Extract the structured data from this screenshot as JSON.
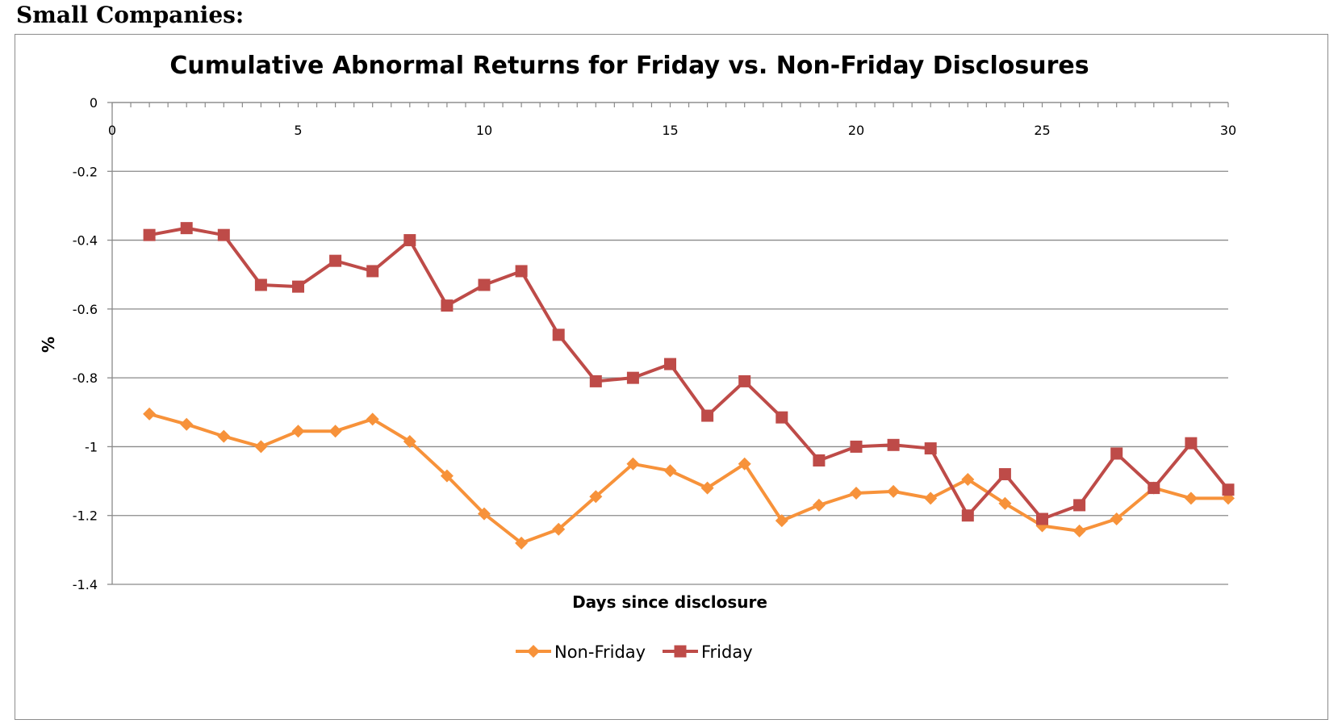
{
  "heading": "Small Companies:",
  "chart_data": {
    "type": "line",
    "title": "Cumulative Abnormal Returns for Friday vs. Non-Friday Disclosures",
    "xlabel": "Days since disclosure",
    "ylabel": "%",
    "xlim": [
      0,
      30
    ],
    "ylim": [
      -1.4,
      0
    ],
    "x_ticks": [
      0,
      5,
      10,
      15,
      20,
      25,
      30
    ],
    "y_ticks": [
      0,
      -0.2,
      -0.4,
      -0.6,
      -0.8,
      -1,
      -1.2,
      -1.4
    ],
    "y_tick_labels": [
      "0",
      "-0.2",
      "-0.4",
      "-0.6",
      "-0.8",
      "-1",
      "-1.2",
      "-1.4"
    ],
    "grid": "horizontal",
    "legend_position": "bottom",
    "x": [
      1,
      2,
      3,
      4,
      5,
      6,
      7,
      8,
      9,
      10,
      11,
      12,
      13,
      14,
      15,
      16,
      17,
      18,
      19,
      20,
      21,
      22,
      23,
      24,
      25,
      26,
      27,
      28,
      29,
      30
    ],
    "series": [
      {
        "name": "Non-Friday",
        "color": "#f7923a",
        "marker": "diamond",
        "values": [
          -0.905,
          -0.935,
          -0.97,
          -1.0,
          -0.955,
          -0.955,
          -0.92,
          -0.985,
          -1.085,
          -1.195,
          -1.28,
          -1.24,
          -1.145,
          -1.05,
          -1.07,
          -1.12,
          -1.05,
          -1.215,
          -1.17,
          -1.135,
          -1.13,
          -1.15,
          -1.095,
          -1.165,
          -1.23,
          -1.245,
          -1.21,
          -1.12,
          -1.15,
          -1.15
        ]
      },
      {
        "name": "Friday",
        "color": "#be4b48",
        "marker": "square",
        "values": [
          -0.385,
          -0.365,
          -0.385,
          -0.53,
          -0.535,
          -0.46,
          -0.49,
          -0.4,
          -0.59,
          -0.53,
          -0.49,
          -0.675,
          -0.81,
          -0.8,
          -0.76,
          -0.91,
          -0.81,
          -0.915,
          -1.04,
          -1.0,
          -0.995,
          -1.005,
          -1.2,
          -1.08,
          -1.21,
          -1.17,
          -1.02,
          -1.12,
          -0.99,
          -1.125
        ]
      }
    ]
  }
}
